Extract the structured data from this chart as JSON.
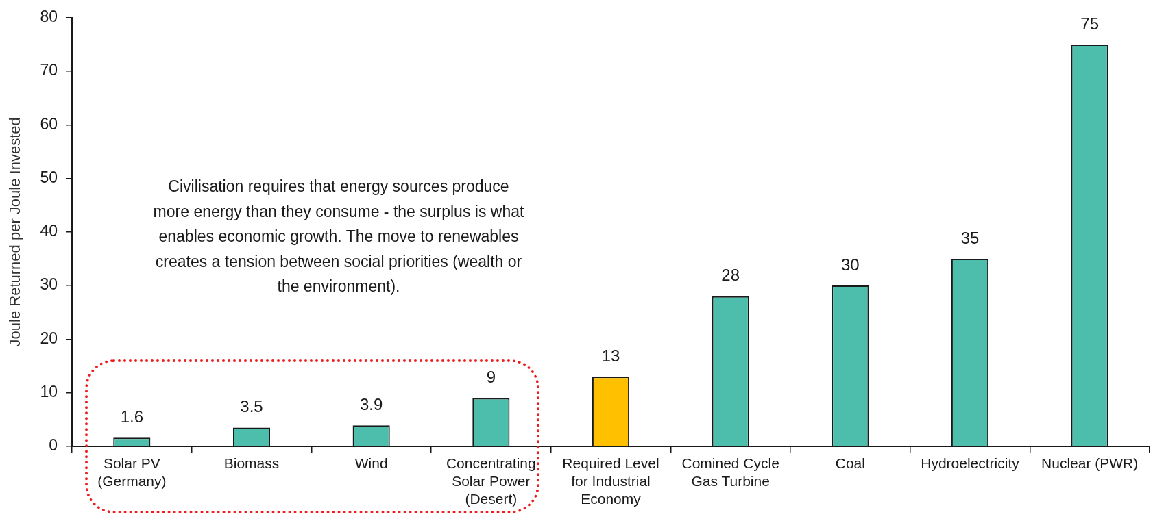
{
  "chart_data": {
    "type": "bar",
    "ylabel": "Joule Returned per Joule Invested",
    "categories": [
      "Solar PV (Germany)",
      "Biomass",
      "Wind",
      "Concentrating Solar Power (Desert)",
      "Required Level for Industrial Economy",
      "Comined Cycle Gas Turbine",
      "Coal",
      "Hydroelectricity",
      "Nuclear (PWR)"
    ],
    "values": [
      1.6,
      3.5,
      3.9,
      9,
      13,
      28,
      30,
      35,
      75
    ],
    "colors": [
      "#4dbdac",
      "#4dbdac",
      "#4dbdac",
      "#4dbdac",
      "#ffc000",
      "#4dbdac",
      "#4dbdac",
      "#4dbdac",
      "#4dbdac"
    ],
    "ylim": [
      0,
      80
    ],
    "yticks": [
      0,
      10,
      20,
      30,
      40,
      50,
      60,
      70,
      80
    ],
    "grid": false,
    "legend": false,
    "data_labels": true,
    "annotations": [
      "Civilisation requires that energy sources produce more energy than they consume - the surplus is what enables economic growth. The move to renewables creates a tension between social priorities (wealth or the environment)."
    ]
  }
}
